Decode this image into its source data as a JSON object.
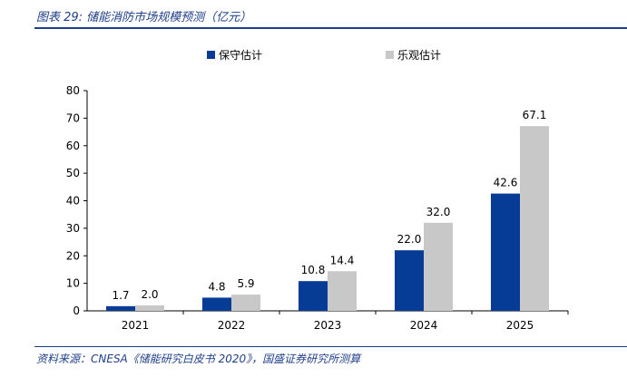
{
  "header": {
    "title": "图表 29:  储能消防市场规模预测（亿元）"
  },
  "footer": {
    "source": "资料来源：CNESA《储能研究白皮书 2020》，国盛证券研究所测算"
  },
  "colors": {
    "conservative": "#063b96",
    "optimistic": "#c8c8c8",
    "axis": "#000000",
    "brand": "#1f3e8a"
  },
  "chart_data": {
    "type": "bar",
    "title": "",
    "xlabel": "",
    "ylabel": "",
    "categories": [
      "2021",
      "2022",
      "2023",
      "2024",
      "2025"
    ],
    "series": [
      {
        "name": "保守估计",
        "values": [
          1.7,
          4.8,
          10.8,
          22.0,
          42.6
        ],
        "labels": [
          "1.7",
          "4.8",
          "10.8",
          "22.0",
          "42.6"
        ]
      },
      {
        "name": "乐观估计",
        "values": [
          2.0,
          5.9,
          14.4,
          32.0,
          67.1
        ],
        "labels": [
          "2.0",
          "5.9",
          "14.4",
          "32.0",
          "67.1"
        ]
      }
    ],
    "ylim": [
      0,
      80
    ],
    "yticks": [
      "0",
      "10",
      "20",
      "30",
      "40",
      "50",
      "60",
      "70",
      "80"
    ],
    "grid": false,
    "legend": "top-center"
  }
}
